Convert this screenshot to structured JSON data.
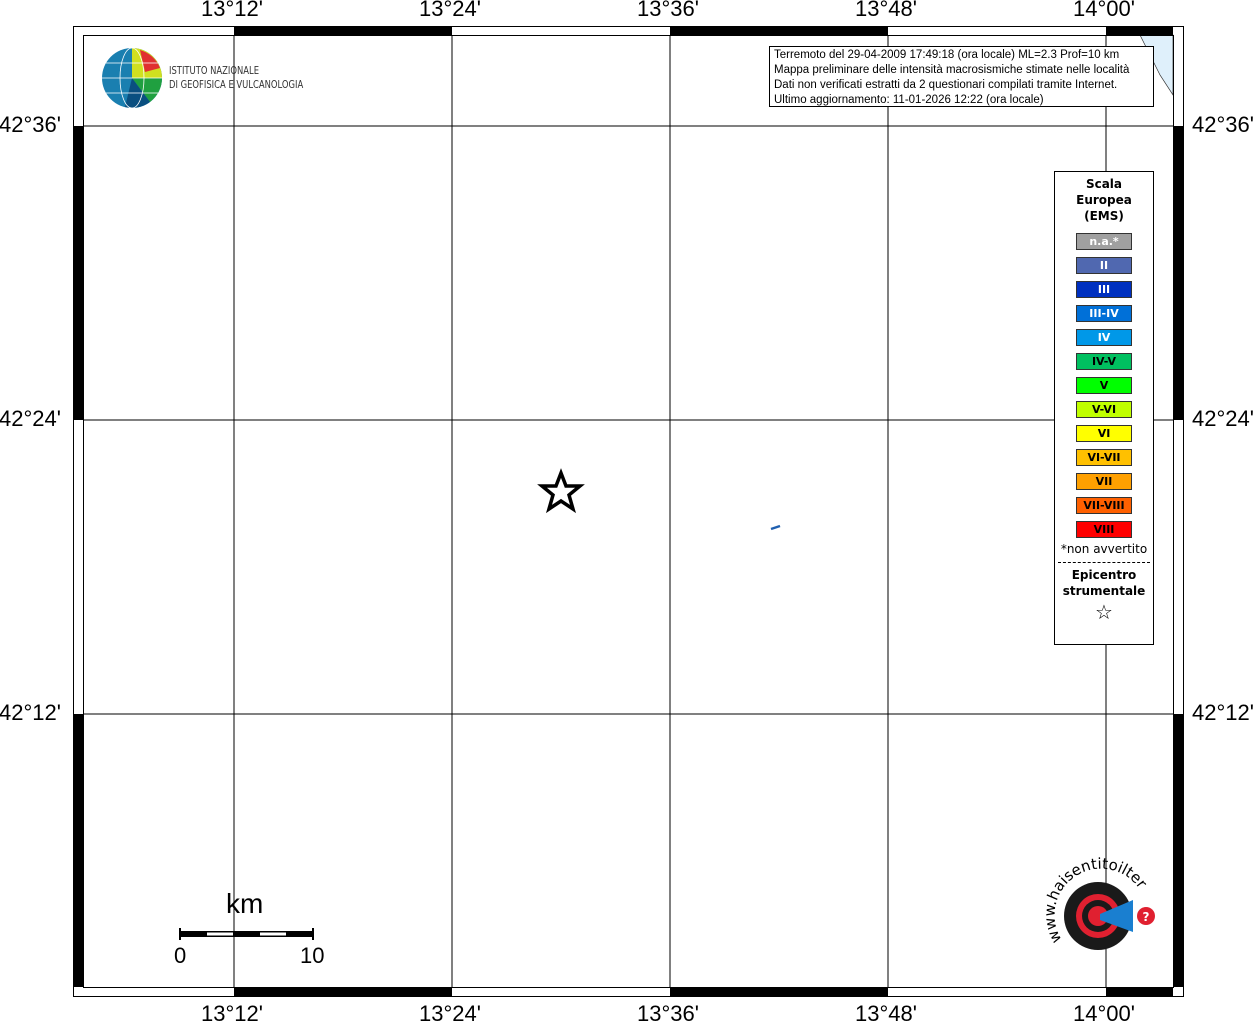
{
  "map": {
    "lon_ticks": [
      "13°12'",
      "13°24'",
      "13°36'",
      "13°48'",
      "14°00'"
    ],
    "lat_ticks": [
      "42°36'",
      "42°24'",
      "42°12'"
    ],
    "sea_color": "#dff0fb",
    "epicenter_icon": "star-outline-icon",
    "observation_color": "#2060b0"
  },
  "info": {
    "lines": [
      "Terremoto del 29-04-2009 17:49:18 (ora locale) ML=2.3 Prof=10 km",
      "Mappa preliminare delle intensità macrosismiche stimate nelle località",
      "Dati non verificati estratti da 2 questionari compilati tramite Internet.",
      "Ultimo aggiornamento: 11-01-2026 12:22 (ora locale)"
    ]
  },
  "logo": {
    "line1": "ISTITUTO NAZIONALE",
    "line2": "DI GEOFISICA E VULCANOLOGIA"
  },
  "logo_hsit": "www.haisentitoilterremoto.it",
  "legend": {
    "title": [
      "Scala",
      "Europea",
      "(EMS)"
    ],
    "items": [
      {
        "label": "n.a.*",
        "color": "#a0a0a0",
        "text": "#fff"
      },
      {
        "label": "II",
        "color": "#5068b0",
        "text": "#fff"
      },
      {
        "label": "III",
        "color": "#0030c0",
        "text": "#fff"
      },
      {
        "label": "III-IV",
        "color": "#0070d8",
        "text": "#fff"
      },
      {
        "label": "IV",
        "color": "#0098e8",
        "text": "#fff"
      },
      {
        "label": "IV-V",
        "color": "#00c060",
        "text": "#000"
      },
      {
        "label": "V",
        "color": "#00ff00",
        "text": "#000"
      },
      {
        "label": "V-VI",
        "color": "#c0ff00",
        "text": "#000"
      },
      {
        "label": "VI",
        "color": "#ffff00",
        "text": "#000"
      },
      {
        "label": "VI-VII",
        "color": "#ffc000",
        "text": "#000"
      },
      {
        "label": "VII",
        "color": "#ffa000",
        "text": "#000"
      },
      {
        "label": "VII-VIII",
        "color": "#ff6000",
        "text": "#000"
      },
      {
        "label": "VIII",
        "color": "#ff0000",
        "text": "#000"
      }
    ],
    "note": "*non avvertito",
    "epicenter_label": [
      "Epicentro",
      "strumentale"
    ]
  },
  "scalebar": {
    "unit": "km",
    "min": "0",
    "max": "10"
  }
}
